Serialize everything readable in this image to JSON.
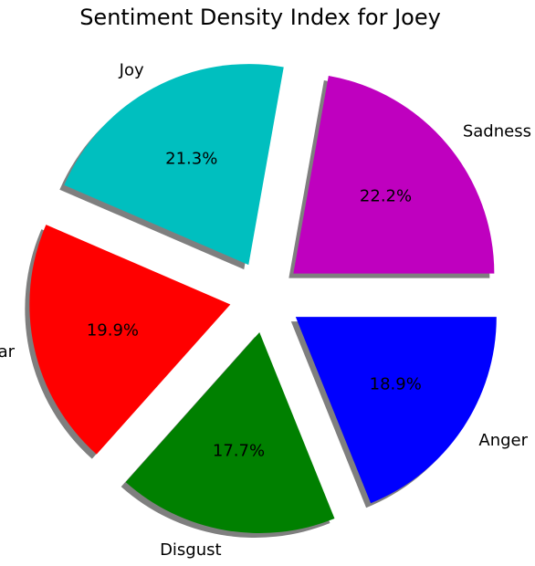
{
  "chart_data": {
    "type": "pie",
    "title": "Sentiment Density Index for Joey",
    "slices": [
      {
        "label": "Sadness",
        "value": 22.2,
        "pct_label": "22.2%",
        "color": "#bf00bf"
      },
      {
        "label": "Joy",
        "value": 21.3,
        "pct_label": "21.3%",
        "color": "#00bfbf"
      },
      {
        "label": "Fear",
        "value": 19.9,
        "pct_label": "19.9%",
        "color": "#ff0000"
      },
      {
        "label": "Disgust",
        "value": 17.7,
        "pct_label": "17.7%",
        "color": "#008000"
      },
      {
        "label": "Anger",
        "value": 18.9,
        "pct_label": "18.9%",
        "color": "#0000ff"
      }
    ],
    "exploded": true,
    "shadow": true,
    "legend": "none"
  }
}
